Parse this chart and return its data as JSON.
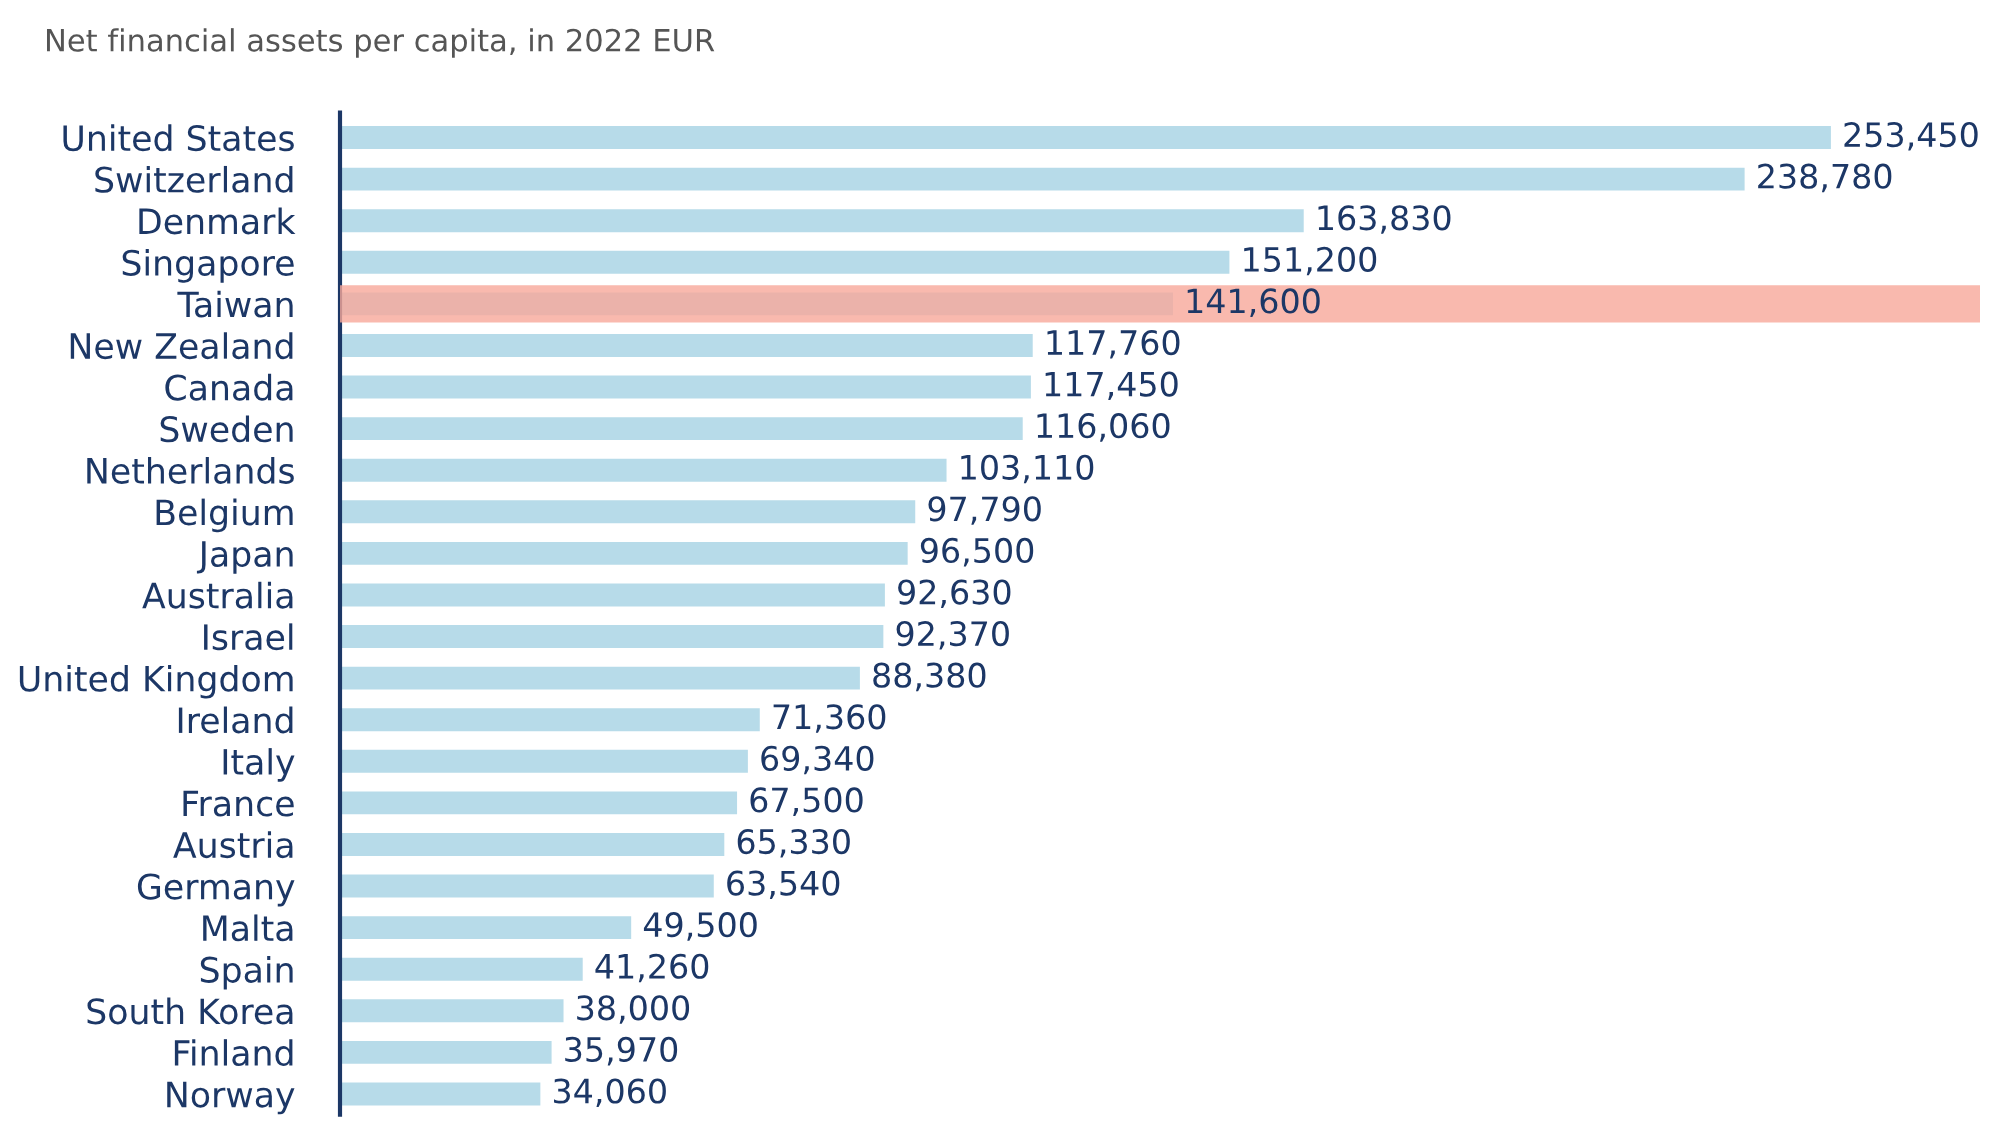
{
  "chart_data": {
    "type": "bar",
    "orientation": "horizontal",
    "title": "Net financial assets per capita, in 2022 EUR",
    "categories": [
      "United States",
      "Switzerland",
      "Denmark",
      "Singapore",
      "Taiwan",
      "New Zealand",
      "Canada",
      "Sweden",
      "Netherlands",
      "Belgium",
      "Japan",
      "Australia",
      "Israel",
      "United Kingdom",
      "Ireland",
      "Italy",
      "France",
      "Austria",
      "Germany",
      "Malta",
      "Spain",
      "South Korea",
      "Finland",
      "Norway"
    ],
    "values": [
      253450,
      238780,
      163830,
      151200,
      141600,
      117760,
      117450,
      116060,
      103110,
      97790,
      96500,
      92630,
      92370,
      88380,
      71360,
      69340,
      67500,
      65330,
      63540,
      49500,
      41260,
      38000,
      35970,
      34060
    ],
    "color": "#b7dbe9",
    "data_labels": true,
    "value_labels": [
      "253,450",
      "238,780",
      "163,830",
      "151,200",
      "141,600",
      "117,760",
      "117,450",
      "116,060",
      "103,110",
      "97,790",
      "96,500",
      "92,630",
      "92,370",
      "88,380",
      "71,360",
      "69,340",
      "67,500",
      "65,330",
      "63,540",
      "49,500",
      "41,260",
      "38,000",
      "35,970",
      "34,060"
    ],
    "bands": [
      {
        "axis": "y",
        "from": "Taiwan",
        "to": "Taiwan",
        "color": "#f7a89a"
      }
    ],
    "tick_labels": "y",
    "grid": false,
    "legend": false
  }
}
